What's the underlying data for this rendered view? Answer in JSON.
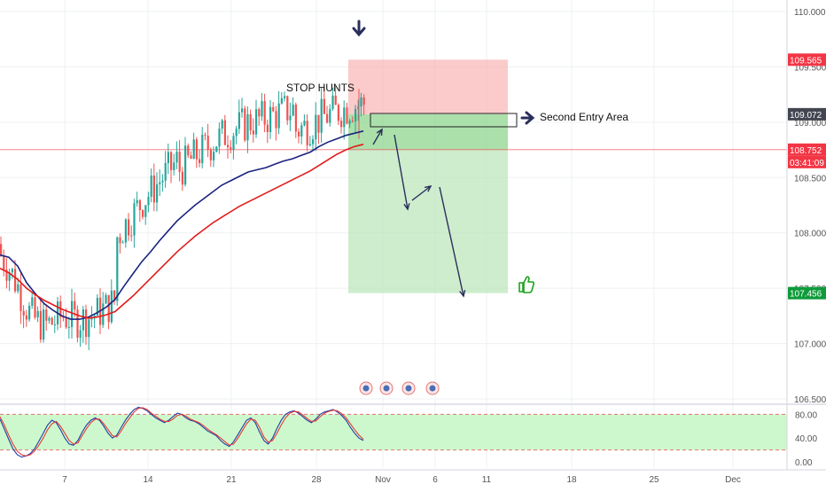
{
  "colors": {
    "up": "#26a69a",
    "down": "#ef5350",
    "ma_fast": "#1a237e",
    "ma_slow": "#e21b1b",
    "stop_zone": "#f8a9a9",
    "target_zone": "#b8e6b8",
    "osc_band": "#c8f7c8",
    "price_red": "#f23645",
    "price_green": "#0e9b3a",
    "price_dark": "#434651",
    "axis_text": "#555555",
    "grid": "#eef0f3",
    "arrow": "#2a2e5a"
  },
  "chart_data": [
    {
      "type": "candlestick",
      "title": "",
      "ylim": [
        106.5,
        110.1
      ],
      "y_ticks": [
        110.0,
        109.5,
        109.0,
        108.5,
        108.0,
        107.5,
        107.0,
        106.5
      ],
      "y_tick_labels": [
        "110.000",
        "109.500",
        "109.000",
        "108.500",
        "108.000",
        "107.500",
        "107.000",
        "106.500"
      ],
      "x_tick_labels": [
        "7",
        "14",
        "21",
        "28",
        "Nov",
        "6",
        "11",
        "18",
        "25",
        "Dec"
      ],
      "price_labels": [
        {
          "value": 109.565,
          "text": "109.565",
          "style": "red"
        },
        {
          "value": 109.072,
          "text": "109.072",
          "style": "dark"
        },
        {
          "value": 108.752,
          "text": "108.752",
          "style": "red"
        },
        {
          "value": 108.752,
          "text": "03:41:09",
          "style": "red-sub"
        },
        {
          "value": 107.456,
          "text": "107.456",
          "style": "green"
        }
      ],
      "current_price_line": 108.752,
      "moving_averages": [
        {
          "name": "",
          "color": "ma_fast",
          "points": [
            [
              0,
              107.8
            ],
            [
              10,
              107.78
            ],
            [
              20,
              107.7
            ],
            [
              30,
              107.55
            ],
            [
              40,
              107.45
            ],
            [
              50,
              107.36
            ],
            [
              60,
              107.3
            ],
            [
              70,
              107.25
            ],
            [
              80,
              107.22
            ],
            [
              90,
              107.22
            ],
            [
              100,
              107.24
            ],
            [
              110,
              107.28
            ],
            [
              120,
              107.33
            ],
            [
              130,
              107.4
            ],
            [
              140,
              107.52
            ],
            [
              150,
              107.63
            ],
            [
              160,
              107.74
            ],
            [
              170,
              107.83
            ],
            [
              180,
              107.93
            ],
            [
              190,
              108.02
            ],
            [
              200,
              108.11
            ],
            [
              210,
              108.18
            ],
            [
              220,
              108.25
            ],
            [
              230,
              108.31
            ],
            [
              240,
              108.37
            ],
            [
              250,
              108.43
            ],
            [
              260,
              108.47
            ],
            [
              270,
              108.51
            ],
            [
              280,
              108.55
            ],
            [
              290,
              108.57
            ],
            [
              300,
              108.59
            ],
            [
              310,
              108.62
            ],
            [
              320,
              108.65
            ],
            [
              330,
              108.67
            ],
            [
              340,
              108.7
            ],
            [
              350,
              108.73
            ],
            [
              360,
              108.78
            ],
            [
              370,
              108.82
            ],
            [
              380,
              108.85
            ],
            [
              390,
              108.88
            ],
            [
              400,
              108.9
            ],
            [
              410,
              108.92
            ]
          ]
        },
        {
          "name": "",
          "color": "ma_slow",
          "points": [
            [
              0,
              107.68
            ],
            [
              10,
              107.64
            ],
            [
              20,
              107.58
            ],
            [
              30,
              107.5
            ],
            [
              40,
              107.44
            ],
            [
              50,
              107.39
            ],
            [
              60,
              107.35
            ],
            [
              70,
              107.31
            ],
            [
              80,
              107.28
            ],
            [
              90,
              107.25
            ],
            [
              100,
              107.23
            ],
            [
              110,
              107.24
            ],
            [
              120,
              107.26
            ],
            [
              130,
              107.29
            ],
            [
              140,
              107.36
            ],
            [
              150,
              107.43
            ],
            [
              160,
              107.51
            ],
            [
              170,
              107.59
            ],
            [
              180,
              107.67
            ],
            [
              190,
              107.75
            ],
            [
              200,
              107.83
            ],
            [
              210,
              107.9
            ],
            [
              220,
              107.97
            ],
            [
              230,
              108.03
            ],
            [
              240,
              108.09
            ],
            [
              250,
              108.14
            ],
            [
              260,
              108.19
            ],
            [
              270,
              108.24
            ],
            [
              280,
              108.28
            ],
            [
              290,
              108.32
            ],
            [
              300,
              108.36
            ],
            [
              310,
              108.4
            ],
            [
              320,
              108.44
            ],
            [
              330,
              108.48
            ],
            [
              340,
              108.52
            ],
            [
              350,
              108.56
            ],
            [
              360,
              108.61
            ],
            [
              370,
              108.66
            ],
            [
              380,
              108.71
            ],
            [
              390,
              108.75
            ],
            [
              400,
              108.78
            ],
            [
              410,
              108.8
            ]
          ]
        }
      ],
      "zones": [
        {
          "name": "stop",
          "color": "stop_zone",
          "y_top": 109.565,
          "y_bottom": 109.072
        },
        {
          "name": "entry",
          "color": "target_zone_dark",
          "y_top": 109.072,
          "y_bottom": 108.752
        },
        {
          "name": "target",
          "color": "target_zone",
          "y_top": 108.752,
          "y_bottom": 107.456
        }
      ],
      "annotations": [
        {
          "text": "STOP HUNTS"
        },
        {
          "text": "Second Entry Area"
        }
      ]
    },
    {
      "type": "line",
      "title": "",
      "ylim": [
        0,
        100
      ],
      "y_ticks": [
        80,
        40,
        0
      ],
      "y_tick_labels": [
        "80.00",
        "40.00",
        "0.00"
      ],
      "band": [
        20,
        80
      ],
      "series": [
        {
          "name": "",
          "color": "#1e3ea8",
          "values": [
            72,
            55,
            38,
            22,
            12,
            8,
            10,
            14,
            22,
            35,
            48,
            62,
            70,
            66,
            54,
            40,
            30,
            28,
            36,
            50,
            62,
            70,
            74,
            70,
            60,
            48,
            40,
            45,
            58,
            70,
            80,
            88,
            92,
            90,
            86,
            80,
            74,
            70,
            66,
            70,
            76,
            82,
            80,
            74,
            70,
            68,
            64,
            58,
            52,
            48,
            44,
            36,
            30,
            26,
            34,
            46,
            58,
            70,
            74,
            66,
            50,
            36,
            30,
            40,
            56,
            70,
            80,
            84,
            86,
            82,
            76,
            70,
            66,
            72,
            80,
            84,
            86,
            88,
            84,
            78,
            70,
            58,
            48,
            40,
            36
          ]
        },
        {
          "name": "",
          "color": "#e53935",
          "values": [
            76,
            62,
            45,
            30,
            18,
            12,
            10,
            12,
            18,
            28,
            40,
            54,
            64,
            68,
            60,
            48,
            36,
            30,
            32,
            44,
            56,
            66,
            72,
            72,
            64,
            54,
            44,
            42,
            52,
            64,
            74,
            84,
            90,
            91,
            88,
            82,
            77,
            72,
            68,
            68,
            72,
            78,
            80,
            77,
            72,
            69,
            66,
            61,
            55,
            50,
            46,
            40,
            34,
            28,
            30,
            40,
            52,
            64,
            72,
            70,
            58,
            42,
            33,
            36,
            48,
            62,
            74,
            82,
            85,
            84,
            79,
            73,
            68,
            69,
            76,
            82,
            85,
            87,
            86,
            81,
            74,
            64,
            54,
            45,
            38
          ]
        }
      ]
    }
  ]
}
